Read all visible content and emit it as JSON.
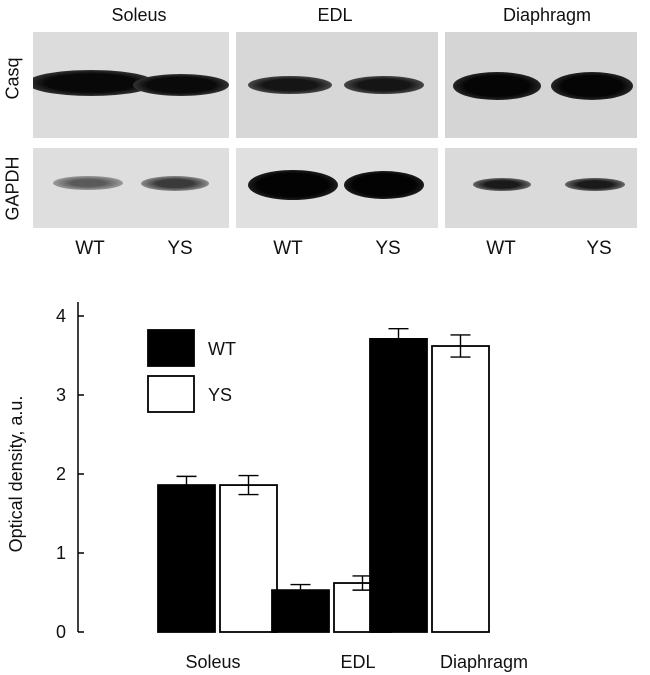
{
  "blots": {
    "tissues": [
      "Soleus",
      "EDL",
      "Diaphragm"
    ],
    "rows": [
      "Casq",
      "GAPDH"
    ],
    "lanes": [
      "WT",
      "YS"
    ]
  },
  "chart_data": {
    "type": "bar",
    "categories": [
      "Soleus",
      "EDL",
      "Diaphragm"
    ],
    "series": [
      {
        "name": "WT",
        "values": [
          1.86,
          0.53,
          3.71
        ],
        "errors": [
          0.11,
          0.07,
          0.13
        ],
        "color": "#000000"
      },
      {
        "name": "YS",
        "values": [
          1.86,
          0.62,
          3.62
        ],
        "errors": [
          0.12,
          0.09,
          0.14
        ],
        "color": "#ffffff"
      }
    ],
    "ylabel": "Optical density, a.u.",
    "xlabel": "",
    "ylim": [
      0,
      4
    ],
    "yticks": [
      0,
      1,
      2,
      3,
      4
    ],
    "legend_position": "top-left",
    "grid": false
  }
}
